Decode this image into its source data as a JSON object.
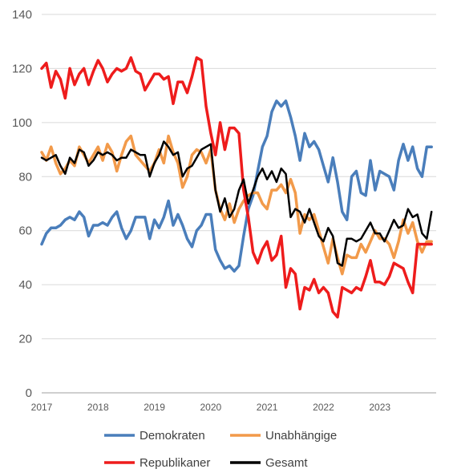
{
  "chart_data": {
    "type": "line",
    "title": "",
    "xlabel": "",
    "ylabel": "",
    "ylim": [
      0,
      140
    ],
    "yticks": [
      0,
      20,
      40,
      60,
      80,
      100,
      120,
      140
    ],
    "xlim": [
      2017,
      2024
    ],
    "xticks": [
      "2017",
      "2018",
      "2019",
      "2020",
      "2021",
      "2022",
      "2023"
    ],
    "grid": "horizontal",
    "legend_position": "bottom",
    "series": [
      {
        "name": "Demokraten",
        "color": "#4a7ebb",
        "x": [
          2017.0,
          2017.083,
          2017.167,
          2017.25,
          2017.333,
          2017.417,
          2017.5,
          2017.583,
          2017.667,
          2017.75,
          2017.833,
          2017.917,
          2018.0,
          2018.083,
          2018.167,
          2018.25,
          2018.333,
          2018.417,
          2018.5,
          2018.583,
          2018.667,
          2018.75,
          2018.833,
          2018.917,
          2019.0,
          2019.083,
          2019.167,
          2019.25,
          2019.333,
          2019.417,
          2019.5,
          2019.583,
          2019.667,
          2019.75,
          2019.833,
          2019.917,
          2020.0,
          2020.083,
          2020.167,
          2020.25,
          2020.333,
          2020.417,
          2020.5,
          2020.583,
          2020.667,
          2020.75,
          2020.833,
          2020.917,
          2021.0,
          2021.083,
          2021.167,
          2021.25,
          2021.333,
          2021.417,
          2021.5,
          2021.583,
          2021.667,
          2021.75,
          2021.833,
          2021.917,
          2022.0,
          2022.083,
          2022.167,
          2022.25,
          2022.333,
          2022.417,
          2022.5,
          2022.583,
          2022.667,
          2022.75,
          2022.833,
          2022.917,
          2023.0,
          2023.083,
          2023.167,
          2023.25,
          2023.333,
          2023.417,
          2023.5,
          2023.583,
          2023.667,
          2023.75,
          2023.833,
          2023.917
        ],
        "values": [
          55,
          59,
          61,
          61,
          62,
          64,
          65,
          64,
          67,
          65,
          58,
          62,
          62,
          63,
          62,
          65,
          67,
          61,
          57,
          60,
          65,
          65,
          65,
          57,
          64,
          61,
          65,
          71,
          62,
          66,
          62,
          57,
          54,
          60,
          62,
          66,
          66,
          53,
          49,
          46,
          47,
          45,
          47,
          58,
          68,
          73,
          82,
          91,
          95,
          104,
          108,
          106,
          108,
          102,
          95,
          86,
          96,
          91,
          93,
          90,
          84,
          78,
          87,
          78,
          67,
          64,
          80,
          82,
          74,
          73,
          86,
          75,
          82,
          81,
          80,
          75,
          86,
          92,
          86,
          91,
          83,
          80,
          91,
          91
        ],
        "stroke_width": 3.5
      },
      {
        "name": "Unabhängige",
        "color": "#f29a4a",
        "x": [
          2017.0,
          2017.083,
          2017.167,
          2017.25,
          2017.333,
          2017.417,
          2017.5,
          2017.583,
          2017.667,
          2017.75,
          2017.833,
          2017.917,
          2018.0,
          2018.083,
          2018.167,
          2018.25,
          2018.333,
          2018.417,
          2018.5,
          2018.583,
          2018.667,
          2018.75,
          2018.833,
          2018.917,
          2019.0,
          2019.083,
          2019.167,
          2019.25,
          2019.333,
          2019.417,
          2019.5,
          2019.583,
          2019.667,
          2019.75,
          2019.833,
          2019.917,
          2020.0,
          2020.083,
          2020.167,
          2020.25,
          2020.333,
          2020.417,
          2020.5,
          2020.583,
          2020.667,
          2020.75,
          2020.833,
          2020.917,
          2021.0,
          2021.083,
          2021.167,
          2021.25,
          2021.333,
          2021.417,
          2021.5,
          2021.583,
          2021.667,
          2021.75,
          2021.833,
          2021.917,
          2022.0,
          2022.083,
          2022.167,
          2022.25,
          2022.333,
          2022.417,
          2022.5,
          2022.583,
          2022.667,
          2022.75,
          2022.833,
          2022.917,
          2023.0,
          2023.083,
          2023.167,
          2023.25,
          2023.333,
          2023.417,
          2023.5,
          2023.583,
          2023.667,
          2023.75,
          2023.833,
          2023.917
        ],
        "values": [
          89,
          86,
          91,
          85,
          81,
          83,
          86,
          84,
          91,
          88,
          85,
          88,
          91,
          86,
          92,
          89,
          82,
          88,
          93,
          95,
          88,
          86,
          84,
          82,
          85,
          90,
          85,
          95,
          89,
          85,
          76,
          80,
          88,
          90,
          89,
          85,
          90,
          75,
          68,
          64,
          70,
          63,
          68,
          71,
          73,
          74,
          74,
          70,
          68,
          75,
          75,
          77,
          74,
          79,
          74,
          59,
          66,
          64,
          66,
          60,
          54,
          48,
          57,
          50,
          44,
          51,
          50,
          50,
          55,
          52,
          56,
          60,
          57,
          57,
          55,
          50,
          56,
          64,
          59,
          63,
          56,
          52,
          56,
          56
        ],
        "stroke_width": 3.5
      },
      {
        "name": "Republikaner",
        "color": "#ee1c1c",
        "x": [
          2017.0,
          2017.083,
          2017.167,
          2017.25,
          2017.333,
          2017.417,
          2017.5,
          2017.583,
          2017.667,
          2017.75,
          2017.833,
          2017.917,
          2018.0,
          2018.083,
          2018.167,
          2018.25,
          2018.333,
          2018.417,
          2018.5,
          2018.583,
          2018.667,
          2018.75,
          2018.833,
          2018.917,
          2019.0,
          2019.083,
          2019.167,
          2019.25,
          2019.333,
          2019.417,
          2019.5,
          2019.583,
          2019.667,
          2019.75,
          2019.833,
          2019.917,
          2020.0,
          2020.083,
          2020.167,
          2020.25,
          2020.333,
          2020.417,
          2020.5,
          2020.583,
          2020.667,
          2020.75,
          2020.833,
          2020.917,
          2021.0,
          2021.083,
          2021.167,
          2021.25,
          2021.333,
          2021.417,
          2021.5,
          2021.583,
          2021.667,
          2021.75,
          2021.833,
          2021.917,
          2022.0,
          2022.083,
          2022.167,
          2022.25,
          2022.333,
          2022.417,
          2022.5,
          2022.583,
          2022.667,
          2022.75,
          2022.833,
          2022.917,
          2023.0,
          2023.083,
          2023.167,
          2023.25,
          2023.333,
          2023.417,
          2023.5,
          2023.583,
          2023.667,
          2023.75,
          2023.833,
          2023.917
        ],
        "values": [
          120,
          122,
          113,
          119,
          116,
          109,
          120,
          114,
          118,
          120,
          114,
          119,
          123,
          120,
          115,
          118,
          120,
          119,
          120,
          124,
          119,
          118,
          112,
          115,
          118,
          118,
          116,
          117,
          107,
          115,
          115,
          111,
          117,
          124,
          123,
          106,
          96,
          88,
          100,
          90,
          98,
          98,
          96,
          75,
          65,
          52,
          48,
          53,
          56,
          49,
          51,
          58,
          39,
          46,
          44,
          31,
          39,
          38,
          42,
          37,
          39,
          37,
          30,
          28,
          39,
          38,
          37,
          39,
          38,
          43,
          49,
          41,
          41,
          40,
          43,
          48,
          47,
          46,
          41,
          37,
          55,
          55,
          55,
          55
        ],
        "stroke_width": 3.5
      },
      {
        "name": "Gesamt",
        "color": "#000000",
        "x": [
          2017.0,
          2017.083,
          2017.167,
          2017.25,
          2017.333,
          2017.417,
          2017.5,
          2017.583,
          2017.667,
          2017.75,
          2017.833,
          2017.917,
          2018.0,
          2018.083,
          2018.167,
          2018.25,
          2018.333,
          2018.417,
          2018.5,
          2018.583,
          2018.667,
          2018.75,
          2018.833,
          2018.917,
          2019.0,
          2019.083,
          2019.167,
          2019.25,
          2019.333,
          2019.417,
          2019.5,
          2019.583,
          2019.667,
          2019.75,
          2019.833,
          2019.917,
          2020.0,
          2020.083,
          2020.167,
          2020.25,
          2020.333,
          2020.417,
          2020.5,
          2020.583,
          2020.667,
          2020.75,
          2020.833,
          2020.917,
          2021.0,
          2021.083,
          2021.167,
          2021.25,
          2021.333,
          2021.417,
          2021.5,
          2021.583,
          2021.667,
          2021.75,
          2021.833,
          2021.917,
          2022.0,
          2022.083,
          2022.167,
          2022.25,
          2022.333,
          2022.417,
          2022.5,
          2022.583,
          2022.667,
          2022.75,
          2022.833,
          2022.917,
          2023.0,
          2023.083,
          2023.167,
          2023.25,
          2023.333,
          2023.417,
          2023.5,
          2023.583,
          2023.667,
          2023.75,
          2023.833,
          2023.917
        ],
        "values": [
          87,
          86,
          87,
          88,
          84,
          81,
          87,
          85,
          90,
          89,
          84,
          86,
          89,
          88,
          89,
          88,
          86,
          87,
          87,
          90,
          89,
          88,
          88,
          80,
          85,
          88,
          93,
          91,
          88,
          89,
          80,
          83,
          84,
          87,
          90,
          91,
          92,
          75,
          67,
          72,
          65,
          68,
          75,
          79,
          70,
          75,
          80,
          83,
          79,
          82,
          78,
          83,
          81,
          65,
          68,
          67,
          63,
          68,
          63,
          58,
          56,
          61,
          58,
          48,
          47,
          57,
          57,
          56,
          57,
          60,
          63,
          59,
          59,
          56,
          60,
          64,
          61,
          62,
          68,
          65,
          66,
          59,
          57,
          67
        ],
        "stroke_width": 2.5
      }
    ]
  }
}
